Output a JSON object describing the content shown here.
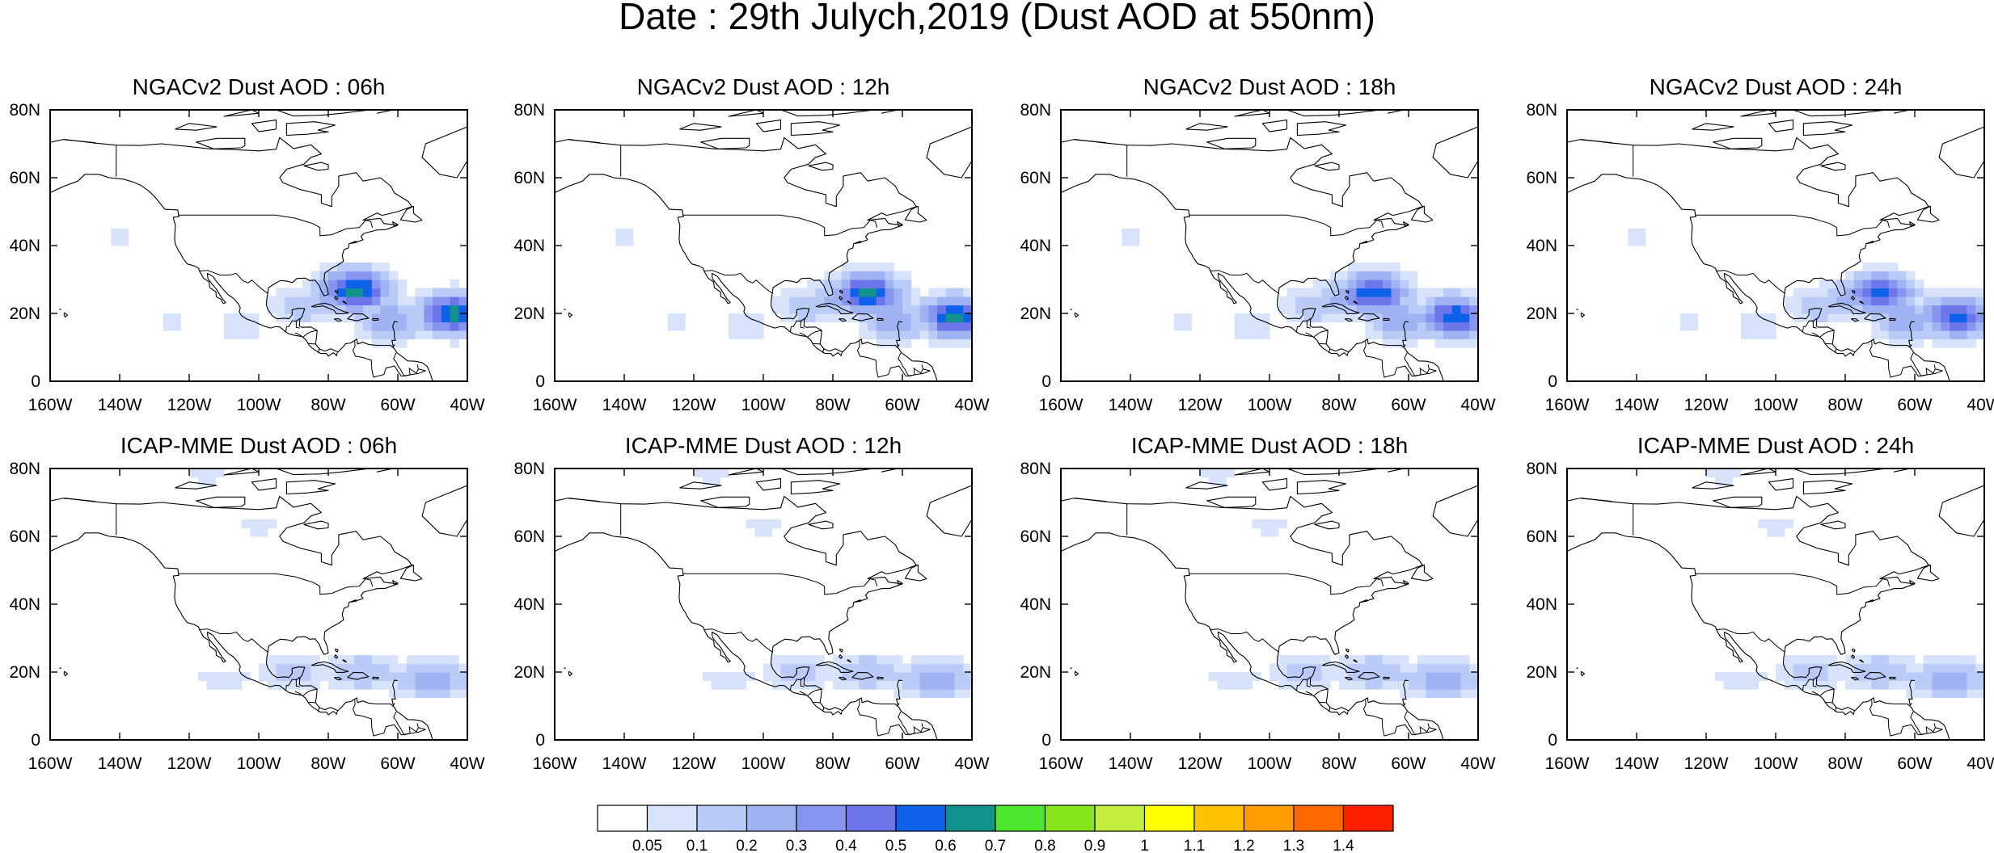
{
  "figure": {
    "title": "Date : 29th Julych,2019 (Dust AOD at 550nm)"
  },
  "map_axes": {
    "lon_labels": [
      "160W",
      "140W",
      "120W",
      "100W",
      "80W",
      "60W",
      "40W"
    ],
    "lat_labels": [
      "0",
      "20N",
      "40N",
      "60N",
      "80N"
    ],
    "lon_range": [
      -160,
      -40
    ],
    "lat_range": [
      0,
      80
    ]
  },
  "panels": [
    {
      "title": "NGACv2 Dust AOD : 06h",
      "model": "NGACv2",
      "hour": 6,
      "dust_features": [
        {
          "lon": -88,
          "lat": 22,
          "aod": 0.15
        },
        {
          "lon": -78,
          "lat": 24,
          "aod": 0.25
        },
        {
          "lon": -72,
          "lat": 27,
          "aod": 0.65
        },
        {
          "lon": -62,
          "lat": 18,
          "aod": 0.3
        },
        {
          "lon": -44,
          "lat": 20,
          "aod": 0.65
        },
        {
          "lon": -105,
          "lat": 16,
          "aod": 0.08
        },
        {
          "lon": -125,
          "lat": 18,
          "aod": 0.06
        },
        {
          "lon": -140,
          "lat": 42,
          "aod": 0.06
        }
      ]
    },
    {
      "title": "NGACv2 Dust AOD : 12h",
      "model": "NGACv2",
      "hour": 12,
      "dust_features": [
        {
          "lon": -88,
          "lat": 22,
          "aod": 0.15
        },
        {
          "lon": -78,
          "lat": 24,
          "aod": 0.25
        },
        {
          "lon": -70,
          "lat": 26,
          "aod": 0.62
        },
        {
          "lon": -62,
          "lat": 18,
          "aod": 0.3
        },
        {
          "lon": -45,
          "lat": 19,
          "aod": 0.62
        },
        {
          "lon": -105,
          "lat": 16,
          "aod": 0.08
        },
        {
          "lon": -125,
          "lat": 18,
          "aod": 0.06
        },
        {
          "lon": -140,
          "lat": 42,
          "aod": 0.06
        }
      ]
    },
    {
      "title": "NGACv2 Dust AOD : 18h",
      "model": "NGACv2",
      "hour": 18,
      "dust_features": [
        {
          "lon": -88,
          "lat": 22,
          "aod": 0.15
        },
        {
          "lon": -78,
          "lat": 24,
          "aod": 0.25
        },
        {
          "lon": -70,
          "lat": 26,
          "aod": 0.6
        },
        {
          "lon": -62,
          "lat": 18,
          "aod": 0.3
        },
        {
          "lon": -47,
          "lat": 19,
          "aod": 0.6
        },
        {
          "lon": -105,
          "lat": 16,
          "aod": 0.08
        },
        {
          "lon": -125,
          "lat": 18,
          "aod": 0.06
        },
        {
          "lon": -140,
          "lat": 42,
          "aod": 0.06
        }
      ]
    },
    {
      "title": "NGACv2 Dust AOD : 24h",
      "model": "NGACv2",
      "hour": 24,
      "dust_features": [
        {
          "lon": -88,
          "lat": 22,
          "aod": 0.15
        },
        {
          "lon": -78,
          "lat": 24,
          "aod": 0.25
        },
        {
          "lon": -70,
          "lat": 26,
          "aod": 0.55
        },
        {
          "lon": -62,
          "lat": 18,
          "aod": 0.3
        },
        {
          "lon": -48,
          "lat": 19,
          "aod": 0.55
        },
        {
          "lon": -105,
          "lat": 16,
          "aod": 0.08
        },
        {
          "lon": -125,
          "lat": 18,
          "aod": 0.06
        },
        {
          "lon": -140,
          "lat": 42,
          "aod": 0.06
        }
      ]
    },
    {
      "title": "ICAP-MME Dust AOD : 06h",
      "model": "ICAP-MME",
      "hour": 6,
      "dust_features": [
        {
          "lon": -90,
          "lat": 20,
          "aod": 0.12
        },
        {
          "lon": -70,
          "lat": 20,
          "aod": 0.18
        },
        {
          "lon": -50,
          "lat": 18,
          "aod": 0.25
        },
        {
          "lon": -110,
          "lat": 18,
          "aod": 0.07
        },
        {
          "lon": -115,
          "lat": 78,
          "aod": 0.06
        },
        {
          "lon": -100,
          "lat": 63,
          "aod": 0.06
        }
      ]
    },
    {
      "title": "ICAP-MME Dust AOD : 12h",
      "model": "ICAP-MME",
      "hour": 12,
      "dust_features": [
        {
          "lon": -90,
          "lat": 20,
          "aod": 0.12
        },
        {
          "lon": -70,
          "lat": 20,
          "aod": 0.18
        },
        {
          "lon": -50,
          "lat": 18,
          "aod": 0.25
        },
        {
          "lon": -110,
          "lat": 18,
          "aod": 0.07
        },
        {
          "lon": -115,
          "lat": 78,
          "aod": 0.06
        },
        {
          "lon": -100,
          "lat": 63,
          "aod": 0.06
        }
      ]
    },
    {
      "title": "ICAP-MME Dust AOD : 18h",
      "model": "ICAP-MME",
      "hour": 18,
      "dust_features": [
        {
          "lon": -90,
          "lat": 20,
          "aod": 0.12
        },
        {
          "lon": -70,
          "lat": 20,
          "aod": 0.18
        },
        {
          "lon": -50,
          "lat": 18,
          "aod": 0.25
        },
        {
          "lon": -110,
          "lat": 18,
          "aod": 0.07
        },
        {
          "lon": -115,
          "lat": 78,
          "aod": 0.06
        },
        {
          "lon": -100,
          "lat": 63,
          "aod": 0.06
        }
      ]
    },
    {
      "title": "ICAP-MME Dust AOD : 24h",
      "model": "ICAP-MME",
      "hour": 24,
      "dust_features": [
        {
          "lon": -90,
          "lat": 20,
          "aod": 0.12
        },
        {
          "lon": -70,
          "lat": 20,
          "aod": 0.18
        },
        {
          "lon": -50,
          "lat": 18,
          "aod": 0.25
        },
        {
          "lon": -110,
          "lat": 18,
          "aod": 0.07
        },
        {
          "lon": -115,
          "lat": 78,
          "aod": 0.06
        },
        {
          "lon": -100,
          "lat": 63,
          "aod": 0.06
        }
      ]
    }
  ],
  "colorbar": {
    "labels": [
      "0.05",
      "0.1",
      "0.2",
      "0.3",
      "0.4",
      "0.5",
      "0.6",
      "0.7",
      "0.8",
      "0.9",
      "1",
      "1.1",
      "1.2",
      "1.3",
      "1.4"
    ],
    "colors": [
      "#ffffff",
      "#d7e3fa",
      "#bacbf7",
      "#9fb3f3",
      "#8696f0",
      "#6d75ea",
      "#0e62ea",
      "#11928c",
      "#4ee52d",
      "#87e51b",
      "#c1ee3c",
      "#ffff00",
      "#ffc100",
      "#ff9d00",
      "#ff6900",
      "#ff2000"
    ]
  }
}
